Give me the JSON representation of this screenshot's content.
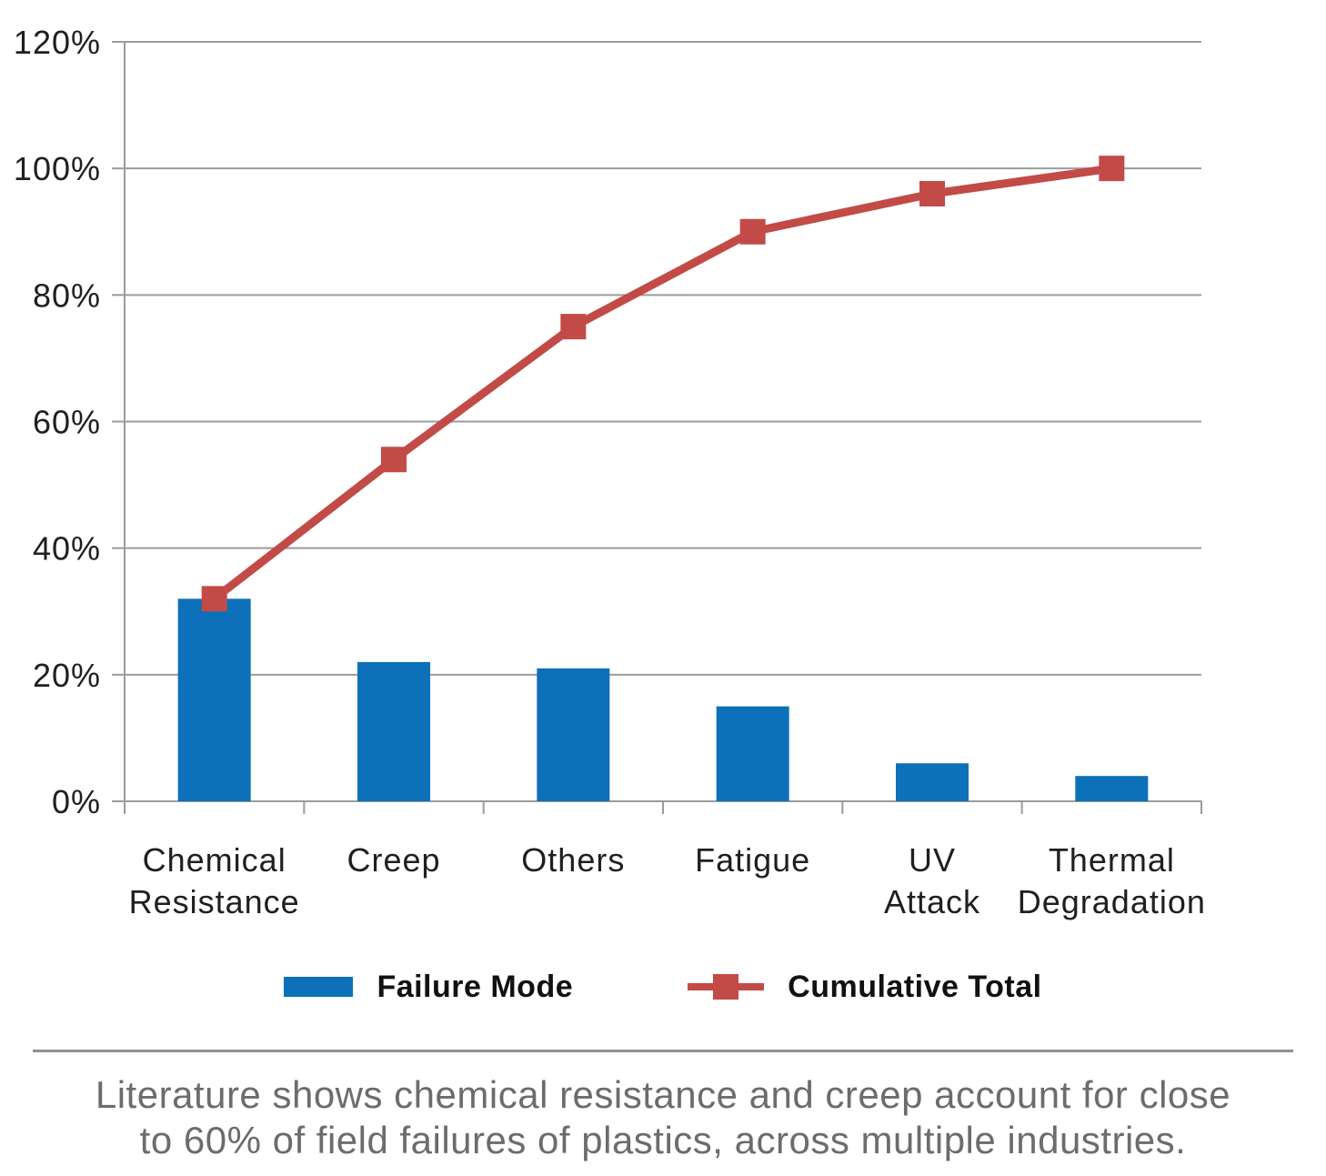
{
  "chart_data": {
    "type": "bar",
    "subtype": "pareto-bar-plus-line",
    "title": "",
    "xlabel": "",
    "ylabel": "",
    "categories": [
      "Chemical Resistance",
      "Creep",
      "Others",
      "Fatigue",
      "UV Attack",
      "Thermal Degradation"
    ],
    "category_label_lines": [
      [
        "Chemical",
        "Resistance"
      ],
      [
        "Creep"
      ],
      [
        "Others"
      ],
      [
        "Fatigue"
      ],
      [
        "UV",
        "Attack"
      ],
      [
        "Thermal",
        "Degradation"
      ]
    ],
    "series": [
      {
        "name": "Failure Mode",
        "type": "bar",
        "values": [
          32,
          22,
          21,
          15,
          6,
          4
        ],
        "color": "#0C71B8"
      },
      {
        "name": "Cumulative Total",
        "type": "line",
        "marker": "square",
        "values": [
          32,
          54,
          75,
          90,
          96,
          100
        ],
        "color": "#C24B47"
      }
    ],
    "ylim": [
      0,
      120
    ],
    "ytick_labels": [
      "0%",
      "20%",
      "40%",
      "60%",
      "80%",
      "100%",
      "120%"
    ],
    "grid": "horizontal",
    "legend_position": "bottom-center"
  },
  "colors": {
    "bar_blue": "#0C71B8",
    "line_red": "#C24B47",
    "grid_gray": "#9B9B9B",
    "axis_text": "#1F1F1F",
    "caption_gray": "#6C6C6C",
    "divider_gray": "#8F8F8F"
  },
  "caption": {
    "lines": [
      "Literature shows chemical resistance and creep account for close",
      "to 60% of field failures of plastics, across multiple industries."
    ]
  }
}
